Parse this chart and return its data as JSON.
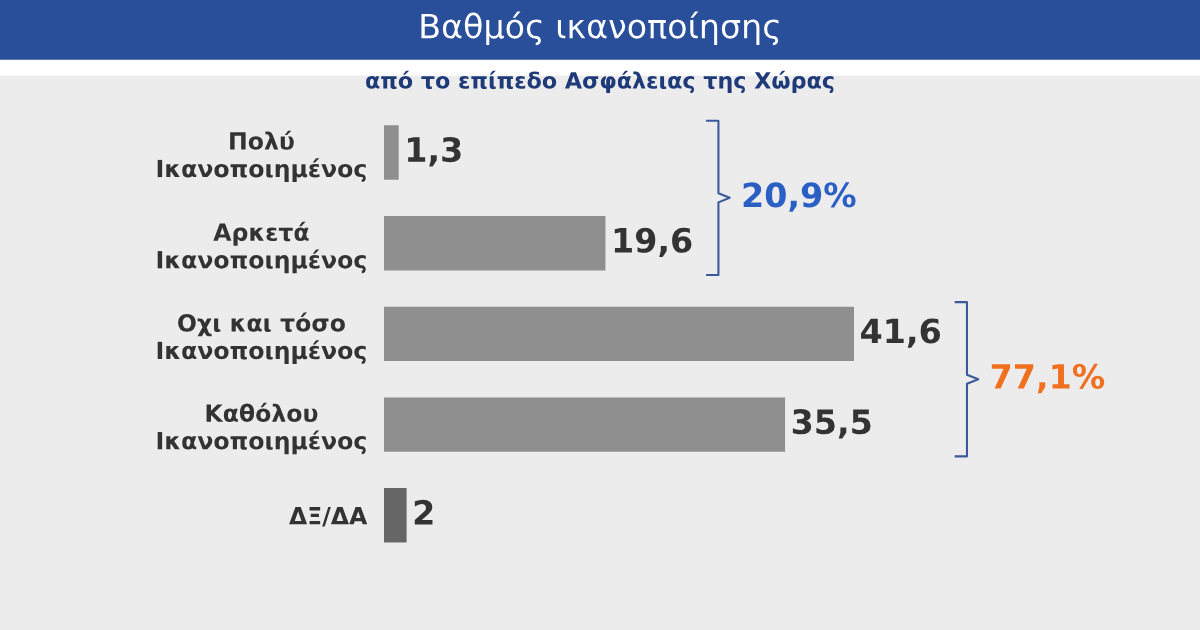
{
  "chart_data": {
    "type": "bar",
    "orientation": "horizontal",
    "title": "Βαθμός ικανοποίησης",
    "subtitle": "από το επίπεδο Ασφάλειας της Χώρας",
    "categories": [
      "Πολύ\nΙκανοποιημένος",
      "Αρκετά\nΙκανοποιημένος",
      "Οχι και τόσο\nΙκανοποιημένος",
      "Καθόλου\nΙκανοποιημένος",
      "ΔΞ/ΔΑ"
    ],
    "values": [
      1.3,
      19.6,
      41.6,
      35.5,
      2
    ],
    "value_labels": [
      "1,3",
      "19,6",
      "41,6",
      "35,5",
      "2"
    ],
    "colors": [
      "#8f8f8f",
      "#8f8f8f",
      "#8f8f8f",
      "#8f8f8f",
      "#666666"
    ],
    "annotations": [
      "20,9%",
      "77,1%"
    ],
    "grid": false
  }
}
